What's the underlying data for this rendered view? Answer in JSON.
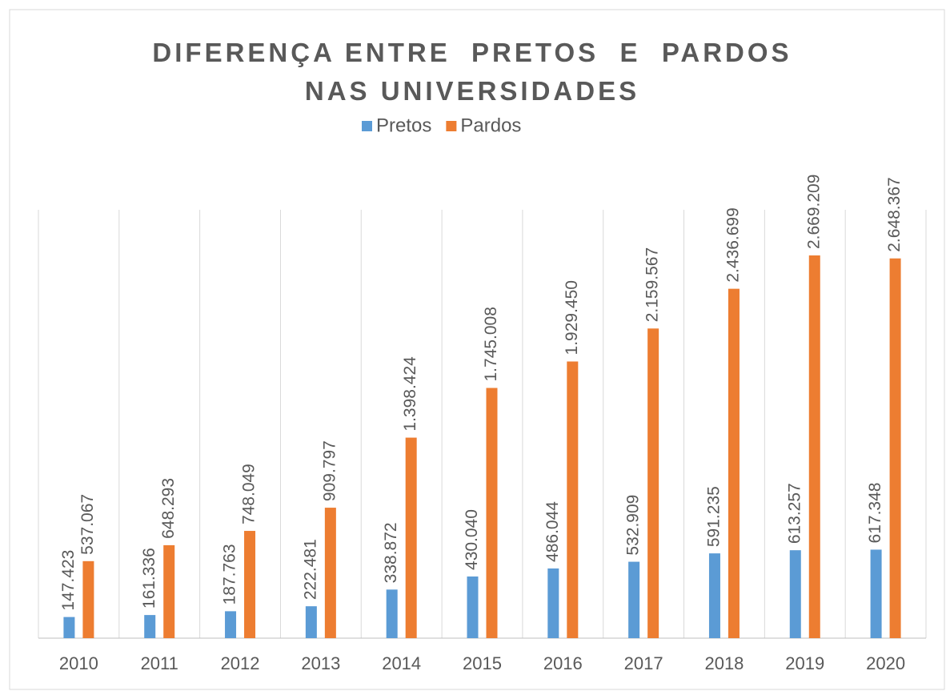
{
  "chart_data": {
    "type": "bar",
    "title": "DIFERENÇA ENTRE  PRETOS  E  PARDOS  NAS UNIVERSIDADES",
    "categories": [
      "2010",
      "2011",
      "2012",
      "2013",
      "2014",
      "2015",
      "2016",
      "2017",
      "2018",
      "2019",
      "2020"
    ],
    "series": [
      {
        "name": "Pretos",
        "color": "#5b9bd5",
        "values": [
          147423,
          161336,
          187763,
          222481,
          338872,
          430040,
          486044,
          532909,
          591235,
          613257,
          617348
        ],
        "value_labels": [
          "147.423",
          "161.336",
          "187.763",
          "222.481",
          "338.872",
          "430.040",
          "486.044",
          "532.909",
          "591.235",
          "613.257",
          "617.348"
        ]
      },
      {
        "name": "Pardos",
        "color": "#ed7d31",
        "values": [
          537067,
          648293,
          748049,
          909797,
          1398424,
          1745008,
          1929450,
          2159567,
          2436699,
          2669209,
          2648367
        ],
        "value_labels": [
          "537.067",
          "648.293",
          "748.049",
          "909.797",
          "1.398.424",
          "1.745.008",
          "1.929.450",
          "2.159.567",
          "2.436.699",
          "2.669.209",
          "2.648.367"
        ]
      }
    ],
    "legend": "top"
  }
}
